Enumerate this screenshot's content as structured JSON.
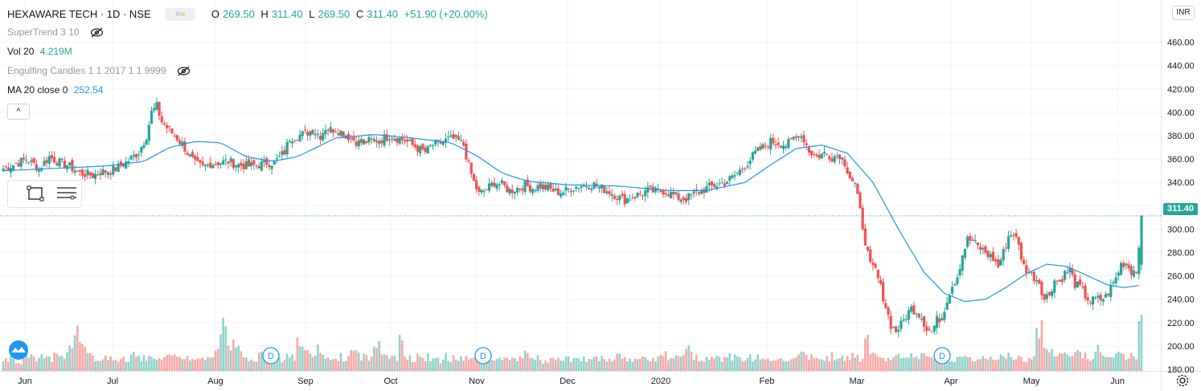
{
  "header": {
    "symbol_line": "HEXAWARE TECH · 1D · NSE",
    "ohlc": [
      {
        "label": "O",
        "value": "269.50"
      },
      {
        "label": "H",
        "value": "311.40"
      },
      {
        "label": "L",
        "value": "269.50"
      },
      {
        "label": "C",
        "value": "311.40"
      },
      {
        "label": "",
        "value": "+51.90 (+20.00%)"
      }
    ]
  },
  "indicators": {
    "supertrend": {
      "label": "SuperTrend 3 10"
    },
    "volume": {
      "label": "Vol 20",
      "value": "4.219M"
    },
    "engulfing": {
      "label": "Engulfing Candles 1 1 2017 1 1 9999"
    },
    "ma": {
      "label": "MA 20 close 0",
      "value": "252.54"
    }
  },
  "currency": "INR",
  "last_price_label": "311.40",
  "colors": {
    "up": "#26a69a",
    "down": "#ef5350",
    "ma": "#2196f3",
    "grid": "#f0f3fa"
  },
  "icons": [
    "eye-off-icon",
    "chevron-up-icon",
    "rectangle-tool-icon",
    "lines-tool-icon",
    "tradingview-logo-icon",
    "gear-icon"
  ],
  "chart_data": {
    "type": "candlestick",
    "title": "HEXAWARE TECH · 1D · NSE",
    "y_axis": {
      "ticks": [
        "460.00",
        "440.00",
        "420.00",
        "400.00",
        "380.00",
        "360.00",
        "340.00",
        "320.00",
        "300.00",
        "280.00",
        "260.00",
        "240.00",
        "220.00",
        "200.00",
        "180.00"
      ],
      "range": [
        172,
        475
      ]
    },
    "x_axis": {
      "ticks": [
        "Jun",
        "Jul",
        "Aug",
        "Sep",
        "Oct",
        "Nov",
        "Dec",
        "2020",
        "Feb",
        "Mar",
        "Apr",
        "May",
        "Jun"
      ]
    },
    "dividend_markers": [
      "D",
      "D",
      "D"
    ],
    "price_path": [
      [
        0,
        352
      ],
      [
        5,
        356
      ],
      [
        9,
        360
      ],
      [
        14,
        352
      ],
      [
        18,
        362
      ],
      [
        22,
        357
      ],
      [
        25,
        355
      ],
      [
        30,
        348
      ],
      [
        35,
        346
      ],
      [
        38,
        349
      ],
      [
        42,
        350
      ],
      [
        45,
        353
      ],
      [
        48,
        357
      ],
      [
        53,
        366
      ],
      [
        56,
        380
      ],
      [
        58,
        400
      ],
      [
        60,
        405
      ],
      [
        62,
        392
      ],
      [
        64,
        387
      ],
      [
        67,
        380
      ],
      [
        70,
        373
      ],
      [
        73,
        362
      ],
      [
        75,
        356
      ],
      [
        78,
        353
      ],
      [
        81,
        356
      ],
      [
        84,
        357
      ],
      [
        88,
        358
      ],
      [
        92,
        355
      ],
      [
        96,
        354
      ],
      [
        100,
        355
      ],
      [
        103,
        357
      ],
      [
        106,
        357
      ],
      [
        110,
        366
      ],
      [
        112,
        378
      ],
      [
        115,
        380
      ],
      [
        118,
        382
      ],
      [
        121,
        385
      ],
      [
        124,
        380
      ],
      [
        126,
        387
      ],
      [
        128,
        385
      ],
      [
        130,
        386
      ],
      [
        133,
        382
      ],
      [
        136,
        378
      ],
      [
        139,
        374
      ],
      [
        142,
        375
      ],
      [
        145,
        376
      ],
      [
        148,
        377
      ],
      [
        151,
        380
      ],
      [
        154,
        378
      ],
      [
        157,
        376
      ],
      [
        160,
        372
      ],
      [
        163,
        368
      ],
      [
        165,
        366
      ],
      [
        168,
        372
      ],
      [
        171,
        374
      ],
      [
        174,
        377
      ],
      [
        177,
        377
      ],
      [
        180,
        372
      ],
      [
        182,
        354
      ],
      [
        184,
        340
      ],
      [
        186,
        330
      ],
      [
        189,
        334
      ],
      [
        192,
        340
      ],
      [
        195,
        338
      ],
      [
        198,
        333
      ],
      [
        201,
        335
      ],
      [
        204,
        338
      ],
      [
        207,
        335
      ],
      [
        210,
        337
      ],
      [
        213,
        335
      ],
      [
        216,
        332
      ],
      [
        219,
        332
      ],
      [
        222,
        335
      ],
      [
        225,
        337
      ],
      [
        228,
        338
      ],
      [
        231,
        338
      ],
      [
        234,
        335
      ],
      [
        237,
        332
      ],
      [
        240,
        328
      ],
      [
        243,
        325
      ],
      [
        246,
        328
      ],
      [
        249,
        330
      ],
      [
        252,
        333
      ],
      [
        255,
        332
      ],
      [
        258,
        333
      ],
      [
        261,
        330
      ],
      [
        264,
        327
      ],
      [
        267,
        326
      ],
      [
        270,
        330
      ],
      [
        273,
        333
      ],
      [
        276,
        336
      ],
      [
        279,
        338
      ],
      [
        282,
        340
      ],
      [
        285,
        344
      ],
      [
        288,
        350
      ],
      [
        291,
        357
      ],
      [
        294,
        365
      ],
      [
        297,
        370
      ],
      [
        300,
        375
      ],
      [
        303,
        374
      ],
      [
        306,
        372
      ],
      [
        309,
        376
      ],
      [
        311,
        382
      ],
      [
        313,
        377
      ],
      [
        315,
        367
      ],
      [
        318,
        362
      ],
      [
        321,
        365
      ],
      [
        324,
        362
      ],
      [
        327,
        364
      ],
      [
        329,
        357
      ],
      [
        331,
        345
      ],
      [
        333,
        338
      ],
      [
        335,
        315
      ],
      [
        337,
        290
      ],
      [
        339,
        268
      ],
      [
        341,
        265
      ],
      [
        343,
        250
      ],
      [
        345,
        234
      ],
      [
        347,
        218
      ],
      [
        349,
        213
      ],
      [
        351,
        218
      ],
      [
        353,
        226
      ],
      [
        355,
        232
      ],
      [
        357,
        230
      ],
      [
        359,
        225
      ],
      [
        361,
        215
      ],
      [
        363,
        212
      ],
      [
        365,
        222
      ],
      [
        367,
        225
      ],
      [
        369,
        240
      ],
      [
        371,
        252
      ],
      [
        373,
        260
      ],
      [
        375,
        278
      ],
      [
        377,
        291
      ],
      [
        379,
        290
      ],
      [
        381,
        285
      ],
      [
        383,
        282
      ],
      [
        385,
        278
      ],
      [
        387,
        275
      ],
      [
        389,
        268
      ],
      [
        391,
        280
      ],
      [
        393,
        294
      ],
      [
        395,
        297
      ],
      [
        397,
        285
      ],
      [
        399,
        268
      ],
      [
        401,
        263
      ],
      [
        403,
        259
      ],
      [
        405,
        255
      ],
      [
        407,
        240
      ],
      [
        409,
        245
      ],
      [
        411,
        256
      ],
      [
        413,
        255
      ],
      [
        415,
        262
      ],
      [
        417,
        265
      ],
      [
        419,
        253
      ],
      [
        421,
        250
      ],
      [
        423,
        243
      ],
      [
        425,
        238
      ],
      [
        427,
        240
      ],
      [
        429,
        240
      ],
      [
        431,
        242
      ],
      [
        433,
        250
      ],
      [
        435,
        258
      ],
      [
        437,
        270
      ],
      [
        439,
        271
      ],
      [
        441,
        264
      ],
      [
        443,
        265
      ],
      [
        445,
        311.4
      ]
    ],
    "ma20_path": [
      [
        0,
        350
      ],
      [
        20,
        352
      ],
      [
        40,
        354
      ],
      [
        55,
        358
      ],
      [
        65,
        370
      ],
      [
        75,
        375
      ],
      [
        85,
        374
      ],
      [
        95,
        362
      ],
      [
        105,
        358
      ],
      [
        115,
        362
      ],
      [
        130,
        378
      ],
      [
        145,
        381
      ],
      [
        160,
        378
      ],
      [
        175,
        374
      ],
      [
        185,
        363
      ],
      [
        195,
        348
      ],
      [
        205,
        341
      ],
      [
        220,
        338
      ],
      [
        240,
        337
      ],
      [
        260,
        333
      ],
      [
        275,
        333
      ],
      [
        290,
        340
      ],
      [
        300,
        355
      ],
      [
        310,
        369
      ],
      [
        320,
        372
      ],
      [
        330,
        365
      ],
      [
        340,
        340
      ],
      [
        350,
        300
      ],
      [
        360,
        263
      ],
      [
        368,
        245
      ],
      [
        376,
        238
      ],
      [
        384,
        240
      ],
      [
        392,
        250
      ],
      [
        400,
        262
      ],
      [
        408,
        270
      ],
      [
        416,
        268
      ],
      [
        424,
        260
      ],
      [
        432,
        252
      ],
      [
        438,
        250
      ],
      [
        445,
        252
      ]
    ],
    "volume_heights": [
      0.25,
      0.3,
      0.2,
      0.35,
      0.28,
      0.22,
      0.3,
      0.26,
      0.4,
      0.35,
      0.45,
      0.9,
      0.55,
      0.3,
      0.28,
      0.22,
      0.3,
      0.26,
      0.24,
      0.2,
      0.35,
      0.3,
      0.28,
      0.25,
      0.22,
      0.3,
      0.28,
      0.35,
      0.3,
      0.26,
      0.24,
      0.28,
      0.3,
      0.4,
      1.0,
      0.45,
      0.55,
      0.35,
      0.3,
      0.28,
      0.32,
      0.3,
      0.26,
      0.24,
      0.3,
      0.28,
      0.6,
      0.35,
      0.3,
      0.5,
      0.28,
      0.24,
      0.3,
      0.26,
      0.4,
      0.35,
      0.3,
      0.28,
      0.5,
      0.3,
      0.35,
      0.28,
      0.6,
      0.3,
      0.26,
      0.35,
      0.3,
      0.25,
      0.22,
      0.3,
      0.26,
      0.3,
      0.28,
      0.24,
      0.3,
      0.25,
      0.22,
      0.3,
      0.26,
      0.24,
      0.28,
      0.35,
      0.3,
      0.26,
      0.2,
      0.22,
      0.25,
      0.28,
      0.3,
      0.26,
      0.22,
      0.24,
      0.28,
      0.25,
      0.2,
      0.22,
      0.3,
      0.26,
      0.24,
      0.22,
      0.3,
      0.28,
      0.25,
      0.35,
      0.3,
      0.26,
      0.28,
      0.45,
      0.3,
      0.26,
      0.24,
      0.3,
      0.28,
      0.35,
      0.3,
      0.25,
      0.22,
      0.28,
      0.3,
      0.26,
      0.24,
      0.3,
      0.28,
      0.25,
      0.3,
      0.35,
      0.3,
      0.4,
      0.3,
      0.28,
      0.32,
      0.3,
      0.25,
      0.3,
      0.28,
      0.6,
      0.35,
      0.3,
      0.28,
      0.25,
      0.3,
      0.26,
      0.3,
      0.28,
      0.32,
      0.3,
      0.35,
      0.3,
      0.28,
      0.25,
      0.3,
      0.26,
      0.25,
      0.3,
      0.28,
      0.3,
      0.35,
      0.3,
      0.28,
      0.3,
      0.25,
      0.3,
      0.9,
      0.45,
      0.4,
      0.38,
      0.35,
      0.3,
      0.4,
      0.35,
      0.3,
      0.45,
      0.32,
      0.3,
      0.35,
      0.3,
      0.3,
      0.35,
      1.0
    ],
    "last": 311.4
  }
}
